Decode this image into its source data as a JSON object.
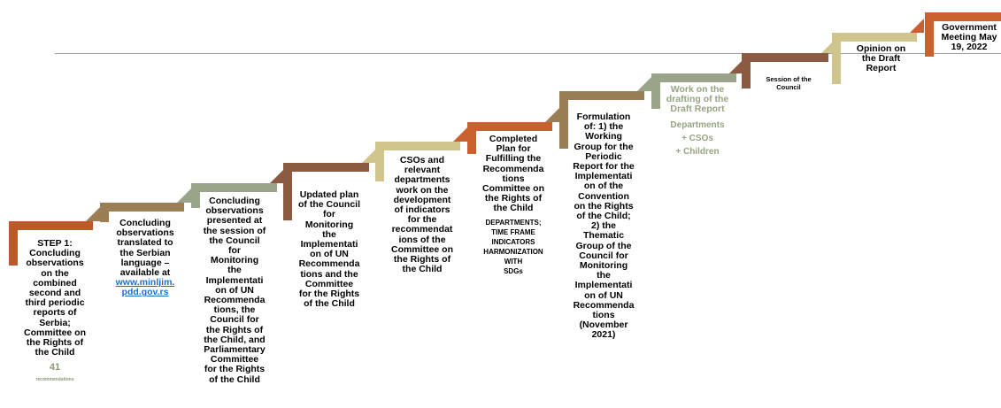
{
  "steps": [
    {
      "color": "#c0592a",
      "lines": [
        "STEP 1:",
        "Concluding",
        "observations",
        "on the",
        "combined",
        "second and",
        "third periodic",
        "reports of",
        "Serbia;",
        "Committee on",
        "the Rights of",
        "the Child"
      ],
      "count": "41",
      "count_label": "recommendations"
    },
    {
      "color": "#9a7f56",
      "lines": [
        "Concluding",
        "observations",
        "translated to",
        "the Serbian",
        "language –",
        "available at"
      ],
      "link": "www.minljim.\npdd.gov.rs"
    },
    {
      "color": "#99a489",
      "lines": [
        "Concluding",
        "observations",
        "presented at",
        "the session of",
        "the Council",
        "for",
        "Monitoring",
        "the",
        "Implementati",
        "on of UN",
        "Recommenda",
        "tions, the",
        "Council for",
        "the Rights of",
        "the Child, and",
        "Parliamentary",
        "Committee",
        "for the Rights",
        "of the Child"
      ]
    },
    {
      "color": "#8a5a42",
      "lines": [
        "Updated plan",
        "of the Council",
        "for",
        "Monitoring",
        "the",
        "Implementati",
        "on of UN",
        "Recommenda",
        "tions and the",
        "Committee",
        "for the Rights",
        "of the Child"
      ]
    },
    {
      "color": "#cfc58d",
      "lines": [
        "CSOs and",
        "relevant",
        "departments",
        "work on the",
        "development",
        "of indicators",
        "for the",
        "recommendat",
        "ions of the",
        "Committee on",
        "the Rights of",
        "the Child"
      ]
    },
    {
      "color": "#c8612f",
      "lines": [
        "Completed",
        "Plan for",
        "Fulfilling the",
        "Recommenda",
        "tions",
        "Committee on",
        "the Rights of",
        "the Child"
      ],
      "sub": [
        "DEPARTMENTS;",
        "TIME FRAME",
        "INDICATORS",
        "HARMONIZATION",
        "WITH",
        "SDGs"
      ]
    },
    {
      "color": "#9a7f56",
      "lines": [
        "Formulation",
        "of: 1) the",
        "Working",
        "Group for the",
        "Periodic",
        "Report for the",
        "Implementati",
        "on of the",
        "Convention",
        "on the Rights",
        "of the Child;",
        "2) the",
        "Thematic",
        "Group of the",
        "Council for",
        "Monitoring",
        "the",
        "Implementati",
        "on of UN",
        "Recommenda",
        "tions",
        "(November",
        "2021)"
      ]
    },
    {
      "color": "#99a489",
      "lines": [
        "Work on the",
        "drafting of the",
        "Draft Report"
      ],
      "sub": [
        "Departments",
        "+ CSOs",
        "+ Children"
      ]
    },
    {
      "color": "#8a5a42",
      "lines": [
        "Session of the",
        "Council"
      ]
    },
    {
      "color": "#cfc58d",
      "lines": [
        "Opinion on",
        "the Draft",
        "Report"
      ]
    },
    {
      "color": "#c8612f",
      "lines": [
        "Government",
        "Meeting May",
        "19, 2022"
      ]
    }
  ]
}
